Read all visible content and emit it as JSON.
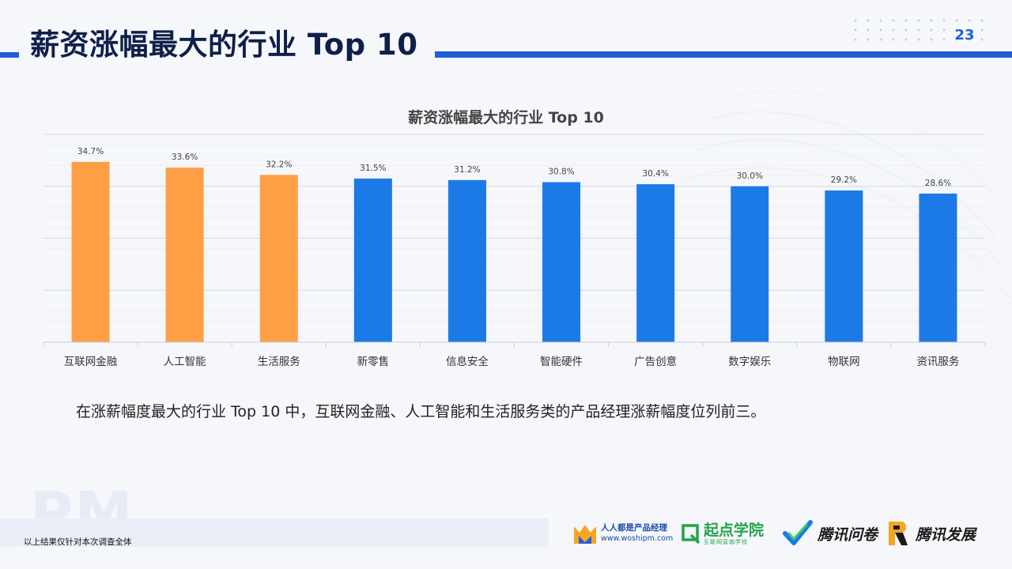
{
  "header": {
    "title": "薪资涨幅最大的行业 Top 10",
    "page_number": "23"
  },
  "chart_data": {
    "type": "bar",
    "title": "薪资涨幅最大的行业 Top 10",
    "categories": [
      "互联网金融",
      "人工智能",
      "生活服务",
      "新零售",
      "信息安全",
      "智能硬件",
      "广告创意",
      "数字娱乐",
      "物联网",
      "资讯服务"
    ],
    "values": [
      34.7,
      33.6,
      32.2,
      31.5,
      31.2,
      30.8,
      30.4,
      30.0,
      29.2,
      28.6
    ],
    "value_labels": [
      "34.7%",
      "33.6%",
      "32.2%",
      "31.5%",
      "31.2%",
      "30.8%",
      "30.4%",
      "30.0%",
      "29.2%",
      "28.6%"
    ],
    "highlight_count": 3,
    "colors": {
      "highlight": "#ff9f45",
      "normal": "#1c7ae6"
    },
    "ylim": [
      0,
      40
    ],
    "grid": true,
    "xlabel": "",
    "ylabel": ""
  },
  "summary": "在涨薪幅度最大的行业 Top 10 中，互联网金融、人工智能和生活服务类的产品经理涨薪幅度位列前三。",
  "watermark": "PM",
  "footnote": "以上结果仅针对本次调查全体",
  "logos": [
    {
      "icon": "woshipm-m-icon",
      "line1": "人人都是产品经理",
      "line2": "www.woshipm.com"
    },
    {
      "icon": "qidian-q-icon",
      "line1": "起点学院",
      "line2": "互联网营销学校"
    },
    {
      "icon": "tencent-wenjuan-check-icon",
      "line1": "腾讯问卷"
    },
    {
      "icon": "tencent-development-icon",
      "line1": "腾讯发展"
    }
  ]
}
